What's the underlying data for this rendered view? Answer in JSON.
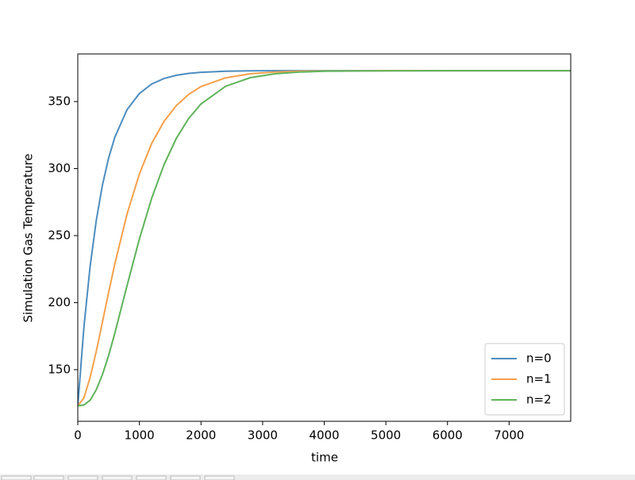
{
  "chart_data": {
    "type": "line",
    "xlabel": "time",
    "ylabel": "Simulation Gas Temperature",
    "x": [
      0,
      100,
      200,
      300,
      400,
      500,
      600,
      800,
      1000,
      1200,
      1400,
      1600,
      1800,
      2000,
      2400,
      2800,
      3200,
      3600,
      4000,
      5000,
      6000,
      7000,
      8000
    ],
    "series": [
      {
        "name": "n=0",
        "color": "#4c8dbf",
        "values": [
          123,
          182,
          227,
          261.3,
          287.7,
          307.8,
          323.2,
          344,
          356,
          363.1,
          367.2,
          369.6,
          371,
          371.8,
          372.6,
          372.9,
          373,
          373,
          373,
          373,
          373,
          373,
          373
        ]
      },
      {
        "name": "n=1",
        "color": "#f5a04a",
        "values": [
          123,
          129,
          144.2,
          163.7,
          185.5,
          207.5,
          228.7,
          266.2,
          296,
          318.8,
          335.3,
          347,
          355.4,
          361.2,
          367.7,
          370.7,
          372,
          372.6,
          372.8,
          373,
          373,
          373,
          373
        ]
      },
      {
        "name": "n=2",
        "color": "#5fb35a",
        "values": [
          123,
          123.7,
          127.2,
          135,
          146.3,
          160.5,
          177,
          212.8,
          247.5,
          278,
          303,
          322.6,
          337.4,
          348.2,
          361.4,
          367.8,
          370.7,
          372,
          372.6,
          372.9,
          373,
          373,
          373
        ]
      }
    ],
    "xlim": [
      0,
      8000
    ],
    "xticks": [
      0,
      1000,
      2000,
      3000,
      4000,
      5000,
      6000,
      7000
    ],
    "ylim": [
      111.5,
      385.5
    ],
    "yticks": [
      150,
      200,
      250,
      300,
      350
    ],
    "legend": "lower right"
  }
}
